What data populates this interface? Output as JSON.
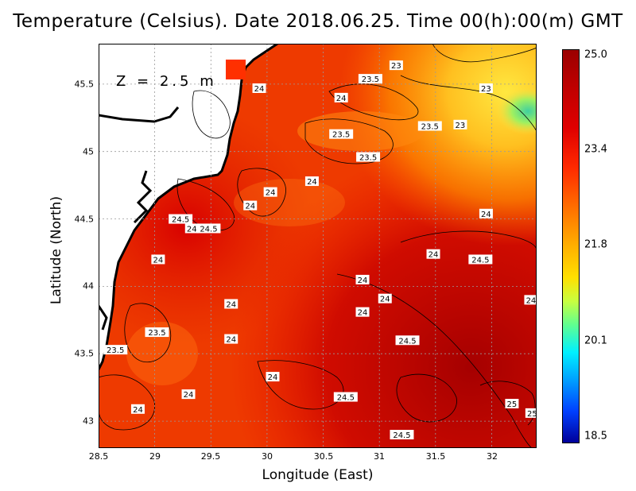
{
  "title": "Temperature (Celsius). Date 2018.06.25. Time 00(h):00(m) GMT",
  "depth_label": "Z = 2.5 m",
  "axes": {
    "xlabel": "Longitude (East)",
    "ylabel": "Latitude (North)",
    "x_ticks": [
      "28.5",
      "29",
      "29.5",
      "30",
      "30.5",
      "31",
      "31.5",
      "32"
    ],
    "y_ticks": [
      "45.5",
      "45",
      "44.5",
      "44",
      "43.5",
      "43"
    ],
    "xlim": [
      28.5,
      32.4
    ],
    "ylim": [
      42.8,
      45.8
    ]
  },
  "colorbar": {
    "ticks": [
      "25.0",
      "23.4",
      "21.8",
      "20.1",
      "18.5"
    ],
    "range": [
      18.5,
      25.0
    ]
  },
  "contour_labels": [
    {
      "text": "23",
      "lon": 31.15,
      "lat": 45.64
    },
    {
      "text": "23.5",
      "lon": 30.92,
      "lat": 45.54
    },
    {
      "text": "24",
      "lon": 29.93,
      "lat": 45.47
    },
    {
      "text": "24",
      "lon": 30.66,
      "lat": 45.4
    },
    {
      "text": "23",
      "lon": 31.95,
      "lat": 45.47
    },
    {
      "text": "23.5",
      "lon": 31.45,
      "lat": 45.19
    },
    {
      "text": "23",
      "lon": 31.72,
      "lat": 45.2
    },
    {
      "text": "23.5",
      "lon": 30.66,
      "lat": 45.13
    },
    {
      "text": "23.5",
      "lon": 30.9,
      "lat": 44.96
    },
    {
      "text": "24",
      "lon": 30.4,
      "lat": 44.78
    },
    {
      "text": "24",
      "lon": 30.03,
      "lat": 44.7
    },
    {
      "text": "24",
      "lon": 29.85,
      "lat": 44.6
    },
    {
      "text": "24.5",
      "lon": 29.23,
      "lat": 44.5
    },
    {
      "text": "24",
      "lon": 29.33,
      "lat": 44.43
    },
    {
      "text": "24.5",
      "lon": 29.48,
      "lat": 44.43
    },
    {
      "text": "24",
      "lon": 31.95,
      "lat": 44.54
    },
    {
      "text": "24",
      "lon": 29.03,
      "lat": 44.2
    },
    {
      "text": "24",
      "lon": 31.48,
      "lat": 44.24
    },
    {
      "text": "24.5",
      "lon": 31.9,
      "lat": 44.2
    },
    {
      "text": "24",
      "lon": 30.85,
      "lat": 44.05
    },
    {
      "text": "24",
      "lon": 31.05,
      "lat": 43.91
    },
    {
      "text": "24",
      "lon": 32.35,
      "lat": 43.9
    },
    {
      "text": "24",
      "lon": 29.68,
      "lat": 43.87
    },
    {
      "text": "24",
      "lon": 30.85,
      "lat": 43.81
    },
    {
      "text": "23.5",
      "lon": 29.02,
      "lat": 43.66
    },
    {
      "text": "24",
      "lon": 29.68,
      "lat": 43.61
    },
    {
      "text": "24.5",
      "lon": 31.25,
      "lat": 43.6
    },
    {
      "text": "23.5",
      "lon": 28.65,
      "lat": 43.53
    },
    {
      "text": "24",
      "lon": 30.05,
      "lat": 43.33
    },
    {
      "text": "24",
      "lon": 29.3,
      "lat": 43.2
    },
    {
      "text": "24.5",
      "lon": 30.7,
      "lat": 43.18
    },
    {
      "text": "25",
      "lon": 32.18,
      "lat": 43.13
    },
    {
      "text": "24",
      "lon": 28.85,
      "lat": 43.09
    },
    {
      "text": "25",
      "lon": 32.36,
      "lat": 43.06
    },
    {
      "text": "24.5",
      "lon": 31.2,
      "lat": 42.9
    }
  ]
}
